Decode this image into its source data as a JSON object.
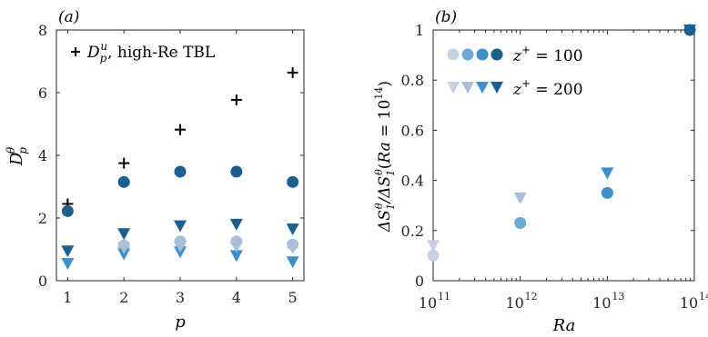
{
  "chart_data": [
    {
      "type": "scatter",
      "panel_label": "(a)",
      "xlabel": "p",
      "ylabel": "D_p^θ",
      "xlim": [
        0.8,
        5.2
      ],
      "ylim": [
        0,
        8
      ],
      "xticks": [
        "1",
        "2",
        "3",
        "4",
        "5"
      ],
      "yticks": [
        "0",
        "2",
        "4",
        "6",
        "8"
      ],
      "legend": {
        "label": "D_p^u, high-Re TBL",
        "placement": "top-left"
      },
      "series": [
        {
          "name": "D_p^u, high-Re TBL",
          "marker": "plus",
          "color": "#000000",
          "x": [
            1,
            2,
            3,
            4,
            5
          ],
          "y": [
            2.45,
            3.75,
            4.82,
            5.77,
            6.64
          ]
        },
        {
          "marker": "circle",
          "color": "#1a5f8e",
          "x": [
            1,
            2,
            3,
            4,
            5
          ],
          "y": [
            2.22,
            3.15,
            3.48,
            3.48,
            3.15
          ]
        },
        {
          "marker": "circle",
          "color": "#a9bfd8",
          "x": [
            2,
            3,
            4,
            5
          ],
          "y": [
            1.12,
            1.25,
            1.25,
            1.15
          ]
        },
        {
          "marker": "triangle-down",
          "color": "#1a5f8e",
          "x": [
            1,
            2,
            3,
            4,
            5
          ],
          "y": [
            0.95,
            1.5,
            1.75,
            1.8,
            1.65
          ]
        },
        {
          "marker": "triangle-down",
          "color": "#3b91c8",
          "x": [
            1,
            2,
            3,
            4,
            5
          ],
          "y": [
            0.55,
            0.85,
            0.92,
            0.8,
            0.6
          ]
        },
        {
          "marker": "triangle-down",
          "color": "#a9bfd8",
          "x": [
            2,
            3,
            4,
            5
          ],
          "y": [
            1.05,
            1.1,
            1.1,
            1.05
          ]
        }
      ]
    },
    {
      "type": "scatter",
      "panel_label": "(b)",
      "xlabel": "Ra",
      "ylabel": "ΔS_1^θ/ΔS_1^θ(Ra = 10^14)",
      "xscale": "log",
      "xlim": [
        100000000000,
        100000000000000
      ],
      "ylim": [
        0,
        1
      ],
      "xticks": [
        "10",
        "10",
        "10",
        "10"
      ],
      "xtick_exponents": [
        "11",
        "12",
        "13",
        "14"
      ],
      "yticks": [
        "0",
        "0.2",
        "0.4",
        "0.6",
        "0.8",
        "1"
      ],
      "legend": {
        "labels": [
          "z^+ = 100",
          "z^+ = 200"
        ],
        "placement": "top-left"
      },
      "series": [
        {
          "name": "z^+ = 100",
          "marker": "circle",
          "x": [
            100000000000,
            1000000000000,
            10000000000000,
            100000000000000
          ],
          "y": [
            0.1,
            0.23,
            0.35,
            1.0
          ],
          "colors": [
            "#c6cfe3",
            "#6aaad4",
            "#3b91c8",
            "#1a5f8e"
          ]
        },
        {
          "name": "z^+ = 200",
          "marker": "triangle-down",
          "x": [
            100000000000,
            1000000000000,
            10000000000000,
            100000000000000
          ],
          "y": [
            0.14,
            0.33,
            0.43,
            1.0
          ],
          "colors": [
            "#c6cfe3",
            "#a9bfd8",
            "#3b91c8",
            "#1a5f8e"
          ]
        }
      ]
    }
  ]
}
